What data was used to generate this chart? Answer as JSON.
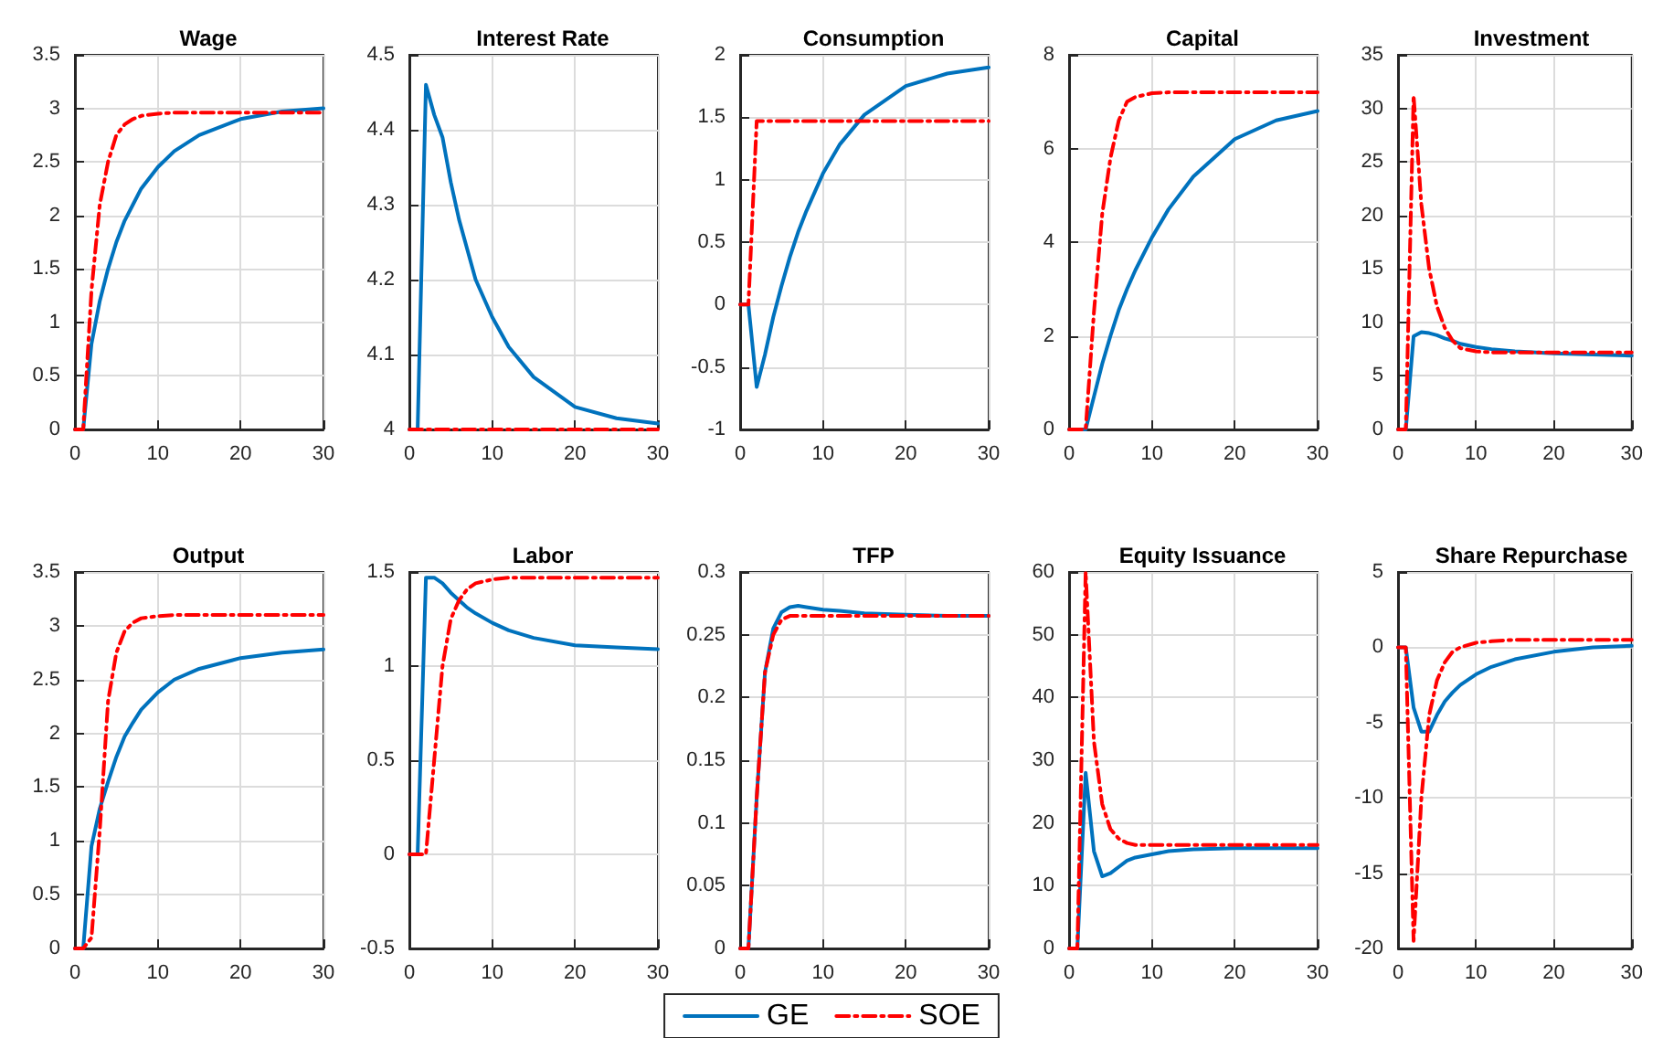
{
  "chart_data": [
    {
      "type": "line",
      "title": "Wage",
      "x": [
        0,
        1,
        2,
        3,
        4,
        5,
        6,
        7,
        8,
        10,
        12,
        15,
        20,
        25,
        30
      ],
      "xlim": [
        0,
        30
      ],
      "xticks": [
        0,
        10,
        20,
        30
      ],
      "ylim": [
        0,
        3.5
      ],
      "yticks": [
        0,
        0.5,
        1,
        1.5,
        2,
        2.5,
        3,
        3.5
      ],
      "grid": true,
      "legend": "bottom",
      "series": [
        {
          "name": "GE",
          "color": "#0072bd",
          "line_style": "solid",
          "values": [
            0,
            0,
            0.8,
            1.2,
            1.5,
            1.75,
            1.95,
            2.1,
            2.25,
            2.45,
            2.6,
            2.75,
            2.9,
            2.97,
            3.0
          ]
        },
        {
          "name": "SOE",
          "color": "#ff0000",
          "line_style": "dashed",
          "values": [
            0,
            0,
            1.3,
            2.1,
            2.5,
            2.75,
            2.85,
            2.9,
            2.93,
            2.95,
            2.96,
            2.96,
            2.96,
            2.96,
            2.96
          ]
        }
      ]
    },
    {
      "type": "line",
      "title": "Interest Rate",
      "x": [
        0,
        1,
        2,
        3,
        4,
        5,
        6,
        7,
        8,
        10,
        12,
        15,
        20,
        25,
        30
      ],
      "xlim": [
        0,
        30
      ],
      "xticks": [
        0,
        10,
        20,
        30
      ],
      "ylim": [
        4,
        4.5
      ],
      "yticks": [
        4,
        4.1,
        4.2,
        4.3,
        4.4,
        4.5
      ],
      "grid": true,
      "series": [
        {
          "name": "GE",
          "color": "#0072bd",
          "line_style": "solid",
          "values": [
            4,
            4,
            4.46,
            4.42,
            4.39,
            4.33,
            4.28,
            4.24,
            4.2,
            4.15,
            4.11,
            4.07,
            4.03,
            4.015,
            4.008
          ]
        },
        {
          "name": "SOE",
          "color": "#ff0000",
          "line_style": "dashed",
          "values": [
            4,
            4,
            4,
            4,
            4,
            4,
            4,
            4,
            4,
            4,
            4,
            4,
            4,
            4,
            4
          ]
        }
      ]
    },
    {
      "type": "line",
      "title": "Consumption",
      "x": [
        0,
        1,
        2,
        3,
        4,
        5,
        6,
        7,
        8,
        10,
        12,
        15,
        20,
        25,
        30
      ],
      "xlim": [
        0,
        30
      ],
      "xticks": [
        0,
        10,
        20,
        30
      ],
      "ylim": [
        -1,
        2
      ],
      "yticks": [
        -1,
        -0.5,
        0,
        0.5,
        1,
        1.5,
        2
      ],
      "grid": true,
      "series": [
        {
          "name": "GE",
          "color": "#0072bd",
          "line_style": "solid",
          "values": [
            0,
            0,
            -0.66,
            -0.4,
            -0.1,
            0.15,
            0.38,
            0.58,
            0.75,
            1.05,
            1.28,
            1.52,
            1.75,
            1.85,
            1.9
          ]
        },
        {
          "name": "SOE",
          "color": "#ff0000",
          "line_style": "dashed",
          "values": [
            0,
            0,
            1.47,
            1.47,
            1.47,
            1.47,
            1.47,
            1.47,
            1.47,
            1.47,
            1.47,
            1.47,
            1.47,
            1.47,
            1.47
          ]
        }
      ]
    },
    {
      "type": "line",
      "title": "Capital",
      "x": [
        0,
        1,
        2,
        3,
        4,
        5,
        6,
        7,
        8,
        10,
        12,
        15,
        20,
        25,
        30
      ],
      "xlim": [
        0,
        30
      ],
      "xticks": [
        0,
        10,
        20,
        30
      ],
      "ylim": [
        0,
        8
      ],
      "yticks": [
        0,
        2,
        4,
        6,
        8
      ],
      "grid": true,
      "series": [
        {
          "name": "GE",
          "color": "#0072bd",
          "line_style": "solid",
          "values": [
            0,
            0,
            0,
            0.7,
            1.4,
            2.0,
            2.55,
            3.0,
            3.4,
            4.1,
            4.7,
            5.4,
            6.2,
            6.6,
            6.8
          ]
        },
        {
          "name": "SOE",
          "color": "#ff0000",
          "line_style": "dashed",
          "values": [
            0,
            0,
            0,
            2.5,
            4.6,
            5.8,
            6.6,
            7.0,
            7.1,
            7.18,
            7.2,
            7.2,
            7.2,
            7.2,
            7.2
          ]
        }
      ]
    },
    {
      "type": "line",
      "title": "Investment",
      "x": [
        0,
        1,
        2,
        3,
        4,
        5,
        6,
        7,
        8,
        10,
        12,
        15,
        20,
        25,
        30
      ],
      "xlim": [
        0,
        30
      ],
      "xticks": [
        0,
        10,
        20,
        30
      ],
      "ylim": [
        0,
        35
      ],
      "yticks": [
        0,
        5,
        10,
        15,
        20,
        25,
        30,
        35
      ],
      "grid": true,
      "series": [
        {
          "name": "GE",
          "color": "#0072bd",
          "line_style": "solid",
          "values": [
            0,
            0,
            8.7,
            9.1,
            9.0,
            8.8,
            8.5,
            8.3,
            8.0,
            7.7,
            7.5,
            7.3,
            7.1,
            7.0,
            6.9
          ]
        },
        {
          "name": "SOE",
          "color": "#ff0000",
          "line_style": "dashed",
          "values": [
            0,
            0,
            31.2,
            21,
            15,
            11.5,
            9.5,
            8.3,
            7.6,
            7.3,
            7.2,
            7.2,
            7.2,
            7.2,
            7.2
          ]
        }
      ]
    },
    {
      "type": "line",
      "title": "Output",
      "x": [
        0,
        1,
        2,
        3,
        4,
        5,
        6,
        7,
        8,
        10,
        12,
        15,
        20,
        25,
        30
      ],
      "xlim": [
        0,
        30
      ],
      "xticks": [
        0,
        10,
        20,
        30
      ],
      "ylim": [
        0,
        3.5
      ],
      "yticks": [
        0,
        0.5,
        1,
        1.5,
        2,
        2.5,
        3,
        3.5
      ],
      "grid": true,
      "series": [
        {
          "name": "GE",
          "color": "#0072bd",
          "line_style": "solid",
          "values": [
            0,
            0,
            0.95,
            1.3,
            1.55,
            1.78,
            1.97,
            2.1,
            2.22,
            2.38,
            2.5,
            2.6,
            2.7,
            2.75,
            2.78
          ]
        },
        {
          "name": "SOE",
          "color": "#ff0000",
          "line_style": "dashed",
          "values": [
            0,
            0,
            0.1,
            1.1,
            2.3,
            2.75,
            2.95,
            3.03,
            3.07,
            3.09,
            3.1,
            3.1,
            3.1,
            3.1,
            3.1
          ]
        }
      ]
    },
    {
      "type": "line",
      "title": "Labor",
      "x": [
        0,
        1,
        2,
        3,
        4,
        5,
        6,
        7,
        8,
        10,
        12,
        15,
        20,
        25,
        30
      ],
      "xlim": [
        0,
        30
      ],
      "xticks": [
        0,
        10,
        20,
        30
      ],
      "ylim": [
        -0.5,
        1.5
      ],
      "yticks": [
        -0.5,
        0,
        0.5,
        1,
        1.5
      ],
      "grid": true,
      "series": [
        {
          "name": "GE",
          "color": "#0072bd",
          "line_style": "solid",
          "values": [
            0,
            0,
            1.47,
            1.47,
            1.44,
            1.39,
            1.35,
            1.31,
            1.28,
            1.23,
            1.19,
            1.15,
            1.11,
            1.1,
            1.09
          ]
        },
        {
          "name": "SOE",
          "color": "#ff0000",
          "line_style": "dashed",
          "values": [
            0,
            0,
            0,
            0.5,
            1.0,
            1.25,
            1.35,
            1.41,
            1.44,
            1.46,
            1.47,
            1.47,
            1.47,
            1.47,
            1.47
          ]
        }
      ]
    },
    {
      "type": "line",
      "title": "TFP",
      "x": [
        0,
        1,
        2,
        3,
        4,
        5,
        6,
        7,
        8,
        10,
        12,
        15,
        20,
        25,
        30
      ],
      "xlim": [
        0,
        30
      ],
      "xticks": [
        0,
        10,
        20,
        30
      ],
      "ylim": [
        0,
        0.3
      ],
      "yticks": [
        0,
        0.05,
        0.1,
        0.15,
        0.2,
        0.25,
        0.3
      ],
      "grid": true,
      "series": [
        {
          "name": "GE",
          "color": "#0072bd",
          "line_style": "solid",
          "values": [
            0,
            0,
            0.12,
            0.22,
            0.255,
            0.268,
            0.272,
            0.273,
            0.272,
            0.27,
            0.269,
            0.267,
            0.266,
            0.265,
            0.265
          ]
        },
        {
          "name": "SOE",
          "color": "#ff0000",
          "line_style": "dashed",
          "values": [
            0,
            0,
            0.12,
            0.22,
            0.25,
            0.262,
            0.265,
            0.265,
            0.265,
            0.265,
            0.265,
            0.265,
            0.265,
            0.265,
            0.265
          ]
        }
      ]
    },
    {
      "type": "line",
      "title": "Equity Issuance",
      "x": [
        0,
        1,
        2,
        3,
        4,
        5,
        6,
        7,
        8,
        10,
        12,
        15,
        20,
        25,
        30
      ],
      "xlim": [
        0,
        30
      ],
      "xticks": [
        0,
        10,
        20,
        30
      ],
      "ylim": [
        0,
        60
      ],
      "yticks": [
        0,
        10,
        20,
        30,
        40,
        50,
        60
      ],
      "grid": true,
      "series": [
        {
          "name": "GE",
          "color": "#0072bd",
          "line_style": "solid",
          "values": [
            0,
            0,
            28,
            15.5,
            11.5,
            12,
            13,
            14,
            14.5,
            15,
            15.5,
            15.8,
            16,
            16,
            16
          ]
        },
        {
          "name": "SOE",
          "color": "#ff0000",
          "line_style": "dashed",
          "values": [
            0,
            0,
            60,
            33,
            23,
            19,
            17.5,
            16.8,
            16.5,
            16.5,
            16.5,
            16.5,
            16.5,
            16.5,
            16.5
          ]
        }
      ]
    },
    {
      "type": "line",
      "title": "Share Repurchase",
      "x": [
        0,
        1,
        2,
        3,
        4,
        5,
        6,
        7,
        8,
        10,
        12,
        15,
        20,
        25,
        30
      ],
      "xlim": [
        0,
        30
      ],
      "xticks": [
        0,
        10,
        20,
        30
      ],
      "ylim": [
        -20,
        5
      ],
      "yticks": [
        -20,
        -15,
        -10,
        -5,
        0,
        5
      ],
      "grid": true,
      "series": [
        {
          "name": "GE",
          "color": "#0072bd",
          "line_style": "solid",
          "values": [
            0,
            0,
            -4,
            -5.6,
            -5.6,
            -4.5,
            -3.6,
            -3,
            -2.5,
            -1.8,
            -1.3,
            -0.8,
            -0.3,
            0,
            0.1
          ]
        },
        {
          "name": "SOE",
          "color": "#ff0000",
          "line_style": "dashed",
          "values": [
            0,
            0,
            -19.5,
            -10,
            -4.5,
            -2.2,
            -1,
            -0.3,
            0,
            0.3,
            0.4,
            0.5,
            0.5,
            0.5,
            0.5
          ]
        }
      ]
    }
  ]
}
